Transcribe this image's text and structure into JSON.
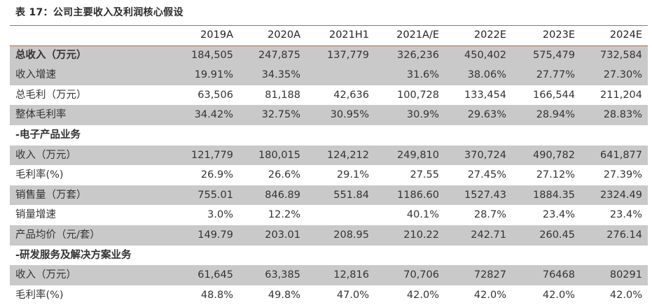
{
  "title": "表 17：公司主要收入及利润核心假设",
  "headers": [
    "",
    "2019A",
    "2020A",
    "2021H1",
    "2021A/E",
    "2022E",
    "2023E",
    "2024E"
  ],
  "rows": [
    {
      "label": "总收入（万元）",
      "values": [
        "184,505",
        "247,875",
        "137,779",
        "326,236",
        "450,402",
        "575,479",
        "732,584"
      ],
      "shaded": true,
      "bold": true,
      "section": false
    },
    {
      "label": "收入增速",
      "values": [
        "19.91%",
        "34.35%",
        "",
        "31.6%",
        "38.06%",
        "27.77%",
        "27.30%"
      ],
      "shaded": true,
      "bold": false,
      "section": false
    },
    {
      "label": "总毛利（万元）",
      "values": [
        "63,506",
        "81,188",
        "42,636",
        "100,728",
        "133,454",
        "166,544",
        "211,204"
      ],
      "shaded": false,
      "bold": false,
      "section": false
    },
    {
      "label": "整体毛利率",
      "values": [
        "34.42%",
        "32.75%",
        "30.95%",
        "30.9%",
        "29.63%",
        "28.94%",
        "28.83%"
      ],
      "shaded": true,
      "bold": false,
      "section": false
    },
    {
      "label": "-电子产品业务",
      "values": [
        "",
        "",
        "",
        "",
        "",
        "",
        ""
      ],
      "shaded": false,
      "bold": true,
      "section": true
    },
    {
      "label": "收入（万元）",
      "values": [
        "121,779",
        "180,015",
        "124,212",
        "249,810",
        "370,724",
        "490,782",
        "641,877"
      ],
      "shaded": true,
      "bold": false,
      "section": false
    },
    {
      "label": "毛利率(%)",
      "values": [
        "26.9%",
        "26.6%",
        "29.1%",
        "27.55",
        "27.45%",
        "27.12%",
        "27.39%"
      ],
      "shaded": false,
      "bold": false,
      "section": false
    },
    {
      "label": "销售量（万套）",
      "values": [
        "755.01",
        "846.89",
        "551.84",
        "1186.60",
        "1527.43",
        "1884.35",
        "2324.49"
      ],
      "shaded": true,
      "bold": false,
      "section": false
    },
    {
      "label": "销量增速",
      "values": [
        "3.0%",
        "12.2%",
        "",
        "40.1%",
        "28.7%",
        "23.4%",
        "23.4%"
      ],
      "shaded": false,
      "bold": false,
      "section": false
    },
    {
      "label": "产品均价（元/套）",
      "values": [
        "149.79",
        "203.01",
        "208.95",
        "210.22",
        "242.71",
        "260.45",
        "276.14"
      ],
      "shaded": true,
      "bold": false,
      "section": false
    },
    {
      "label": "-研发服务及解决方案业务",
      "values": [
        "",
        "",
        "",
        "",
        "",
        "",
        ""
      ],
      "shaded": false,
      "bold": true,
      "section": true
    },
    {
      "label": "收入（万元）",
      "values": [
        "61,645",
        "63,385",
        "12,816",
        "70,706",
        "72827",
        "76468",
        "80291"
      ],
      "shaded": true,
      "bold": false,
      "section": false
    },
    {
      "label": "毛利率(%)",
      "values": [
        "48.8%",
        "49.8%",
        "47.0%",
        "42.0%",
        "42.0%",
        "42.0%",
        "42.0%"
      ],
      "shaded": false,
      "bold": false,
      "section": false
    }
  ],
  "colors": {
    "rule": "#c8642c",
    "shade": "#c9c9c9",
    "text": "#333333"
  }
}
